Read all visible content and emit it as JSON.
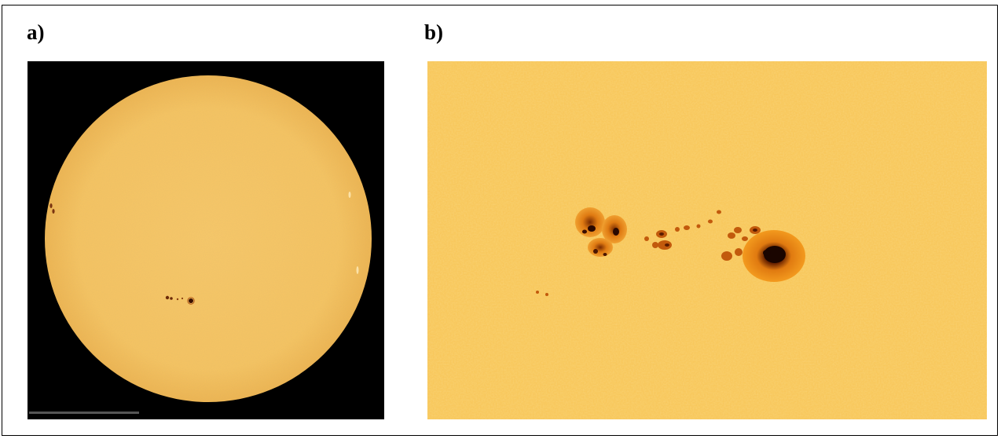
{
  "panels": {
    "a": {
      "label": "a)",
      "image": "full-disk-sun-with-sunspots",
      "background_color": "#000000",
      "disk_color": "#f6c463"
    },
    "b": {
      "label": "b)",
      "image": "sunspot-group-closeup",
      "surface_color": "#f7c450",
      "umbra_color": "#1a0500"
    }
  }
}
